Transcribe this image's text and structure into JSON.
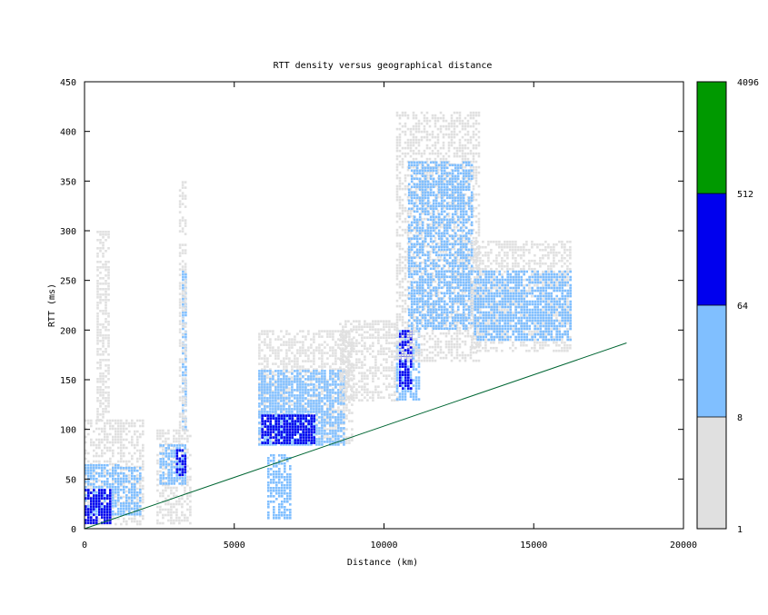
{
  "chart_data": {
    "type": "heatmap",
    "title": "RTT density versus geographical distance",
    "xlabel": "Distance (km)",
    "ylabel": "RTT (ms)",
    "xlim": [
      0,
      20000
    ],
    "ylim": [
      0,
      450
    ],
    "x_ticks": [
      0,
      5000,
      10000,
      15000,
      20000
    ],
    "y_ticks": [
      0,
      50,
      100,
      150,
      200,
      250,
      300,
      350,
      400,
      450
    ],
    "grid": false,
    "colorbar": {
      "scale": "log",
      "ticks": [
        1,
        8,
        64,
        512,
        4096
      ],
      "bands": [
        {
          "from": 1,
          "to": 8,
          "color": "#e0e0e0"
        },
        {
          "from": 8,
          "to": 64,
          "color": "#80bfff"
        },
        {
          "from": 64,
          "to": 512,
          "color": "#0000ee"
        },
        {
          "from": 512,
          "to": 4096,
          "color": "#009900"
        }
      ]
    },
    "reference_line": {
      "color": "#006633",
      "points": [
        [
          0,
          0
        ],
        [
          18100,
          187
        ]
      ]
    },
    "density_regions": [
      {
        "x": [
          0,
          2000
        ],
        "y": [
          5,
          110
        ],
        "level": 1
      },
      {
        "x": [
          0,
          1900
        ],
        "y": [
          15,
          65
        ],
        "level": 2
      },
      {
        "x": [
          0,
          900
        ],
        "y": [
          5,
          40
        ],
        "level": 3
      },
      {
        "x": [
          400,
          800
        ],
        "y": [
          110,
          300
        ],
        "level": 1
      },
      {
        "x": [
          2400,
          3500
        ],
        "y": [
          5,
          100
        ],
        "level": 1
      },
      {
        "x": [
          2500,
          3400
        ],
        "y": [
          45,
          85
        ],
        "level": 2
      },
      {
        "x": [
          3050,
          3350
        ],
        "y": [
          55,
          80
        ],
        "level": 3
      },
      {
        "x": [
          3250,
          3350
        ],
        "y": [
          100,
          260
        ],
        "level": 2
      },
      {
        "x": [
          3150,
          3400
        ],
        "y": [
          100,
          350
        ],
        "level": 1
      },
      {
        "x": [
          5800,
          8900
        ],
        "y": [
          85,
          200
        ],
        "level": 1
      },
      {
        "x": [
          5800,
          8700
        ],
        "y": [
          85,
          160
        ],
        "level": 2
      },
      {
        "x": [
          5900,
          7700
        ],
        "y": [
          85,
          115
        ],
        "level": 3
      },
      {
        "x": [
          6100,
          6900
        ],
        "y": [
          10,
          75
        ],
        "level": 2
      },
      {
        "x": [
          8500,
          10500
        ],
        "y": [
          130,
          210
        ],
        "level": 1
      },
      {
        "x": [
          10400,
          11200
        ],
        "y": [
          130,
          200
        ],
        "level": 2
      },
      {
        "x": [
          10500,
          10900
        ],
        "y": [
          140,
          200
        ],
        "level": 3
      },
      {
        "x": [
          10400,
          13200
        ],
        "y": [
          170,
          420
        ],
        "level": 1
      },
      {
        "x": [
          10800,
          12900
        ],
        "y": [
          200,
          370
        ],
        "level": 2
      },
      {
        "x": [
          12900,
          16200
        ],
        "y": [
          180,
          290
        ],
        "level": 1
      },
      {
        "x": [
          13000,
          16200
        ],
        "y": [
          190,
          260
        ],
        "level": 2
      }
    ]
  }
}
